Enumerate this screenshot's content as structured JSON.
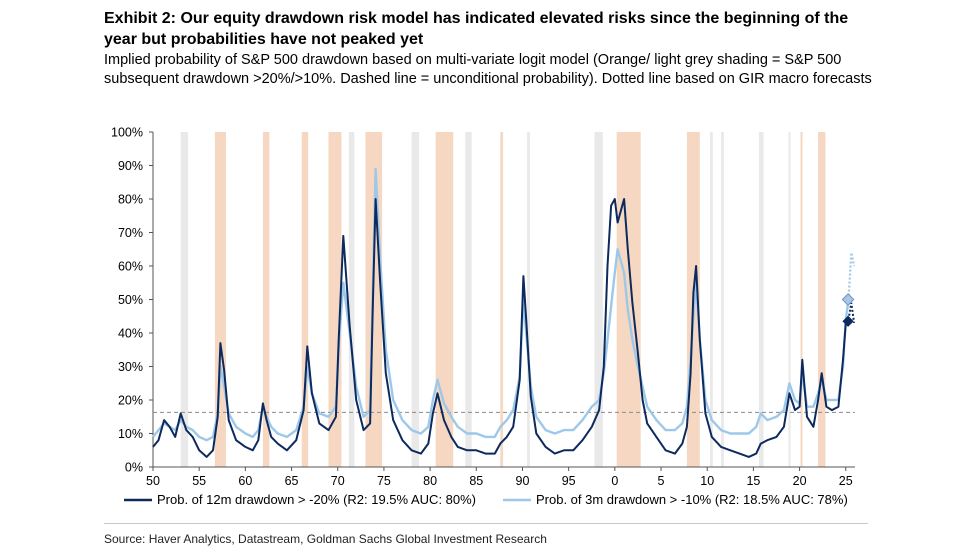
{
  "title": "Exhibit 2: Our equity drawdown risk model has indicated elevated risks since the beginning of the year but probabilities have not peaked yet",
  "subtitle": "Implied probability of S&P 500 drawdown based on multi-variate logit model (Orange/ light grey shading = S&P 500 subsequent drawdown >20%/>10%. Dashed line = unconditional probability). Dotted line based on GIR macro forecasts",
  "source": "Source: Haver Analytics, Datastream, Goldman Sachs Global Investment Research",
  "colors": {
    "series12m": "#0d2a5e",
    "series3m": "#9ec8ea",
    "drawdown20": "#f5d7c2",
    "drawdown10": "#e9e9e9",
    "unconditional": "#8a8a8a"
  },
  "chart_data": {
    "type": "line",
    "xlabel": "",
    "ylabel": "",
    "xlim": [
      1950,
      2026
    ],
    "ylim": [
      0,
      100
    ],
    "x_ticks": [
      50,
      55,
      60,
      65,
      70,
      75,
      80,
      85,
      90,
      95,
      0,
      5,
      10,
      15,
      20,
      25
    ],
    "x_tick_years": [
      1950,
      1955,
      1960,
      1965,
      1970,
      1975,
      1980,
      1985,
      1990,
      1995,
      2000,
      2005,
      2010,
      2015,
      2020,
      2025
    ],
    "y_ticks": [
      "0%",
      "10%",
      "20%",
      "30%",
      "40%",
      "50%",
      "60%",
      "70%",
      "80%",
      "90%",
      "100%"
    ],
    "y_tick_values": [
      0,
      10,
      20,
      30,
      40,
      50,
      60,
      70,
      80,
      90,
      100
    ],
    "legend_position": "bottom",
    "unconditional_probability": 16.3,
    "shading_20pct": [
      [
        1956.7,
        1957.9
      ],
      [
        1961.9,
        1962.6
      ],
      [
        1966.1,
        1966.8
      ],
      [
        1969.0,
        1970.4
      ],
      [
        1973.0,
        1974.8
      ],
      [
        1980.6,
        1982.5
      ],
      [
        1987.6,
        1987.9
      ],
      [
        2000.2,
        2002.8
      ],
      [
        2007.8,
        2009.2
      ],
      [
        2020.1,
        2020.3
      ],
      [
        2022.0,
        2022.8
      ]
    ],
    "shading_10pct": [
      [
        1953.0,
        1953.8
      ],
      [
        1971.2,
        1971.8
      ],
      [
        1978.0,
        1978.8
      ],
      [
        1983.8,
        1984.5
      ],
      [
        1990.5,
        1990.8
      ],
      [
        1997.8,
        1998.7
      ],
      [
        2010.3,
        2010.6
      ],
      [
        2011.5,
        2011.8
      ],
      [
        2015.6,
        2016.1
      ],
      [
        2018.8,
        2019.0
      ]
    ],
    "series": [
      {
        "name": "Prob. of 12m drawdown > -20% (R2: 19.5% AUC: 80%)",
        "legend_label": "Prob. of 12m drawdown > -20% (R2: 19.5% AUC: 80%)",
        "x": [
          1950,
          1950.6,
          1951.2,
          1951.8,
          1952.4,
          1953,
          1953.6,
          1954.3,
          1955,
          1955.8,
          1956.5,
          1957.0,
          1957.3,
          1957.7,
          1958.2,
          1959,
          1960,
          1960.8,
          1961.4,
          1961.9,
          1962.3,
          1962.8,
          1963.5,
          1964.5,
          1965.5,
          1966.3,
          1966.7,
          1967.2,
          1968,
          1969,
          1969.8,
          1970.1,
          1970.6,
          1971.3,
          1972,
          1972.8,
          1973.5,
          1973.8,
          1974.1,
          1974.6,
          1975.2,
          1976,
          1977,
          1978,
          1979,
          1979.8,
          1980.3,
          1980.8,
          1981.5,
          1982.3,
          1983,
          1984,
          1985,
          1986,
          1987,
          1987.6,
          1988.3,
          1989,
          1989.7,
          1990.1,
          1990.4,
          1990.9,
          1991.5,
          1992.5,
          1993.5,
          1994.5,
          1995.5,
          1996.5,
          1997.5,
          1998.3,
          1998.8,
          1999.2,
          1999.6,
          2000,
          2000.3,
          2000.6,
          2001,
          2001.4,
          2001.9,
          2002.5,
          2003,
          2003.5,
          2004.5,
          2005.5,
          2006.5,
          2007.3,
          2007.8,
          2008.2,
          2008.5,
          2008.8,
          2009.2,
          2009.8,
          2010.5,
          2011.5,
          2012.5,
          2013.5,
          2014.5,
          2015.3,
          2015.8,
          2016.5,
          2017.5,
          2018.3,
          2018.9,
          2019.5,
          2020.0,
          2020.3,
          2020.8,
          2021.5,
          2022.0,
          2022.4,
          2022.9,
          2023.5,
          2024.2,
          2024.7,
          2025.0,
          2025.3
        ],
        "values": [
          6,
          8,
          14,
          12,
          9,
          16,
          11,
          9,
          5,
          3,
          5,
          15,
          37,
          29,
          14,
          8,
          6,
          5,
          8,
          19,
          14,
          9,
          7,
          5,
          8,
          17,
          36,
          22,
          13,
          11,
          15,
          38,
          69,
          42,
          20,
          11,
          13,
          48,
          80,
          55,
          28,
          14,
          8,
          5,
          4,
          7,
          16,
          22,
          14,
          9,
          6,
          5,
          5,
          4,
          4,
          7,
          9,
          12,
          26,
          57,
          44,
          21,
          10,
          6,
          4,
          5,
          5,
          8,
          12,
          17,
          30,
          60,
          78,
          80,
          73,
          76,
          80,
          65,
          49,
          34,
          20,
          13,
          9,
          5,
          4,
          7,
          12,
          28,
          52,
          60,
          38,
          16,
          9,
          6,
          5,
          4,
          3,
          4,
          7,
          8,
          9,
          12,
          22,
          17,
          18,
          32,
          15,
          12,
          20,
          28,
          18,
          17,
          18,
          32,
          43,
          44
        ]
      },
      {
        "name": "Prob. of 3m drawdown > -10% (R2: 18.5% AUC: 78%)",
        "legend_label": "Prob. of 3m drawdown > -10% (R2: 18.5% AUC: 78%)",
        "x": [
          1950,
          1950.6,
          1951.2,
          1951.8,
          1952.4,
          1953,
          1953.6,
          1954.3,
          1955,
          1955.8,
          1956.5,
          1957.0,
          1957.3,
          1957.7,
          1958.2,
          1959,
          1960,
          1960.8,
          1961.4,
          1961.9,
          1962.3,
          1962.8,
          1963.5,
          1964.5,
          1965.5,
          1966.3,
          1966.7,
          1967.2,
          1968,
          1969,
          1969.8,
          1970.1,
          1970.6,
          1971.3,
          1972,
          1972.8,
          1973.5,
          1973.8,
          1974.1,
          1974.6,
          1975.2,
          1976,
          1977,
          1978,
          1979,
          1979.8,
          1980.3,
          1980.8,
          1981.5,
          1982.3,
          1983,
          1984,
          1985,
          1986,
          1987,
          1987.6,
          1988.3,
          1989,
          1989.7,
          1990.1,
          1990.4,
          1990.9,
          1991.5,
          1992.5,
          1993.5,
          1994.5,
          1995.5,
          1996.5,
          1997.5,
          1998.3,
          1998.8,
          1999.2,
          1999.6,
          2000,
          2000.3,
          2000.6,
          2001,
          2001.4,
          2001.9,
          2002.5,
          2003,
          2003.5,
          2004.5,
          2005.5,
          2006.5,
          2007.3,
          2007.8,
          2008.2,
          2008.5,
          2008.8,
          2009.2,
          2009.8,
          2010.5,
          2011.5,
          2012.5,
          2013.5,
          2014.5,
          2015.3,
          2015.8,
          2016.5,
          2017.5,
          2018.3,
          2018.9,
          2019.5,
          2020.0,
          2020.3,
          2020.8,
          2021.5,
          2022.0,
          2022.4,
          2022.9,
          2023.5,
          2024.2,
          2024.7,
          2025.0,
          2025.3
        ],
        "values": [
          9,
          11,
          13,
          12,
          11,
          14,
          12,
          11,
          9,
          8,
          9,
          16,
          30,
          24,
          16,
          12,
          10,
          9,
          11,
          18,
          15,
          12,
          10,
          9,
          11,
          18,
          30,
          22,
          16,
          15,
          18,
          36,
          55,
          40,
          24,
          15,
          17,
          52,
          89,
          62,
          35,
          20,
          14,
          11,
          10,
          12,
          20,
          26,
          19,
          15,
          12,
          10,
          10,
          9,
          9,
          12,
          14,
          17,
          27,
          50,
          40,
          24,
          15,
          11,
          10,
          11,
          11,
          14,
          18,
          20,
          28,
          38,
          48,
          58,
          65,
          62,
          58,
          47,
          38,
          30,
          24,
          18,
          14,
          11,
          11,
          13,
          18,
          32,
          45,
          55,
          38,
          20,
          14,
          11,
          10,
          10,
          10,
          12,
          16,
          14,
          15,
          17,
          25,
          20,
          19,
          28,
          18,
          18,
          22,
          26,
          20,
          20,
          20,
          30,
          44,
          50
        ]
      }
    ],
    "forecast": {
      "style": "dotted",
      "x": [
        2025.3,
        2025.6,
        2025.9
      ],
      "series12m_values": [
        44,
        49,
        43
      ],
      "series3m_values": [
        50,
        64,
        60
      ],
      "series12m_marker": {
        "x": 2025.25,
        "value": 43.5
      },
      "series3m_marker": {
        "x": 2025.25,
        "value": 50
      }
    }
  }
}
